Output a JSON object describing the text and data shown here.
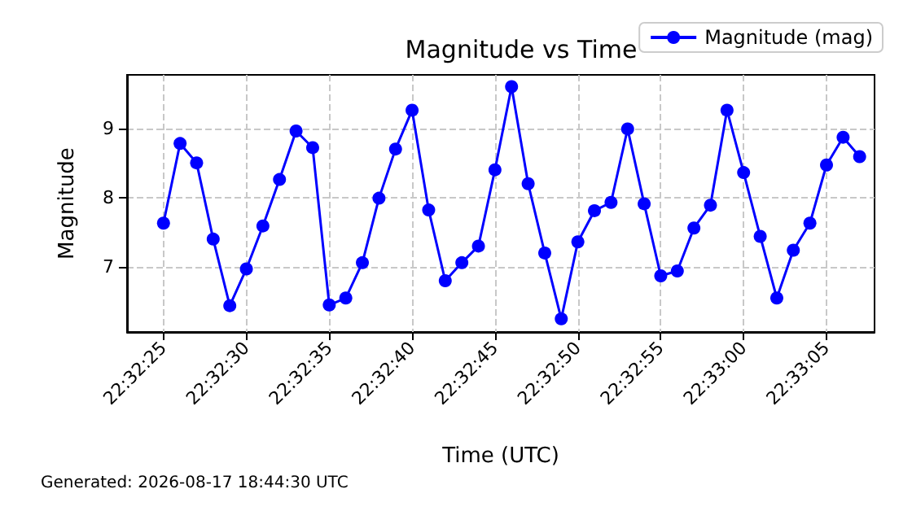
{
  "chart_data": {
    "type": "line",
    "title": "Magnitude vs Time",
    "xlabel": "Time (UTC)",
    "ylabel": "Magnitude",
    "annotations": [
      "Generated: 2026-08-17 18:44:30 UTC"
    ],
    "x": [
      22.540278,
      22.540556,
      22.540833,
      22.541111,
      22.541389,
      22.541667,
      22.541944,
      22.542222,
      22.5425,
      22.542778,
      22.543056,
      22.543333,
      22.543611,
      22.543889,
      22.544167,
      22.544444,
      22.544722,
      22.545,
      22.545278,
      22.545556,
      22.545833,
      22.546111,
      22.546389,
      22.546667,
      22.546944,
      22.547222,
      22.5475,
      22.547778,
      22.548056,
      22.548333,
      22.548611,
      22.548889,
      22.549167,
      22.549444,
      22.549722,
      22.55,
      22.550278,
      22.550556,
      22.550833,
      22.551111,
      22.551389,
      22.551667,
      22.551944
    ],
    "series": [
      {
        "name": "Magnitude (mag)",
        "color": "#0000ff",
        "values": [
          7.63,
          8.78,
          8.5,
          7.4,
          6.44,
          6.97,
          7.59,
          8.26,
          8.96,
          8.72,
          6.45,
          6.55,
          7.06,
          7.99,
          8.7,
          9.26,
          7.82,
          6.8,
          7.06,
          7.3,
          8.4,
          9.6,
          8.2,
          7.2,
          6.25,
          7.36,
          7.81,
          7.93,
          8.99,
          7.91,
          6.87,
          6.94,
          7.56,
          7.89,
          9.26,
          8.36,
          7.44,
          6.55,
          7.24,
          7.63,
          8.47,
          8.87,
          8.59
        ]
      }
    ],
    "xlim": [
      22.539667,
      22.552194
    ],
    "xticks": [
      {
        "value": 22.540278,
        "label": "22:32:25"
      },
      {
        "value": 22.541667,
        "label": "22:32:30"
      },
      {
        "value": 22.543056,
        "label": "22:32:35"
      },
      {
        "value": 22.544444,
        "label": "22:32:40"
      },
      {
        "value": 22.545833,
        "label": "22:32:45"
      },
      {
        "value": 22.547222,
        "label": "22:32:50"
      },
      {
        "value": 22.548611,
        "label": "22:32:55"
      },
      {
        "value": 22.55,
        "label": "22:33:00"
      },
      {
        "value": 22.551389,
        "label": "22:33:05"
      }
    ],
    "ylim": [
      6.06,
      9.77
    ],
    "yticks": [
      7,
      8,
      9
    ],
    "grid": true,
    "legend": "top right",
    "marker": "circle",
    "line_style": "solid"
  }
}
